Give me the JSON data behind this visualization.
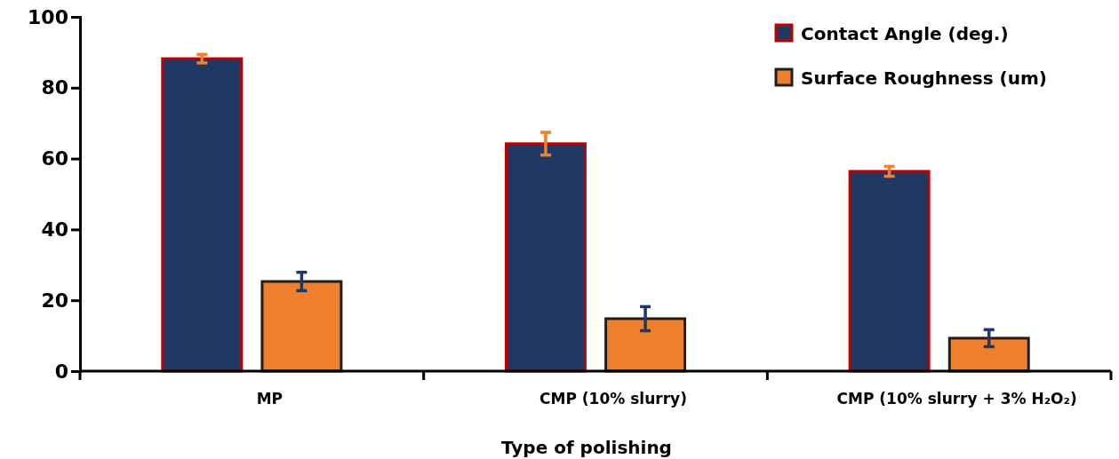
{
  "chart_data": {
    "type": "bar",
    "xlabel": "Type of polishing",
    "categories": [
      "MP",
      "CMP (10% slurry)",
      "CMP (10% slurry + 3% H₂O₂)"
    ],
    "series": [
      {
        "name": "Contact Angle (deg.)",
        "color": "#203864",
        "values": [
          88.2,
          64.2,
          56.4
        ],
        "errors": [
          1.2,
          3.2,
          1.4
        ]
      },
      {
        "name": "Surface Roughness (um)",
        "color": "#f07f2e",
        "values": [
          25.3,
          14.8,
          9.3
        ],
        "errors": [
          2.6,
          3.4,
          2.4
        ]
      }
    ],
    "ylim": [
      0,
      100
    ],
    "yticks": [
      0,
      20,
      40,
      60,
      80,
      100
    ],
    "grid": false,
    "legend": "top right"
  }
}
